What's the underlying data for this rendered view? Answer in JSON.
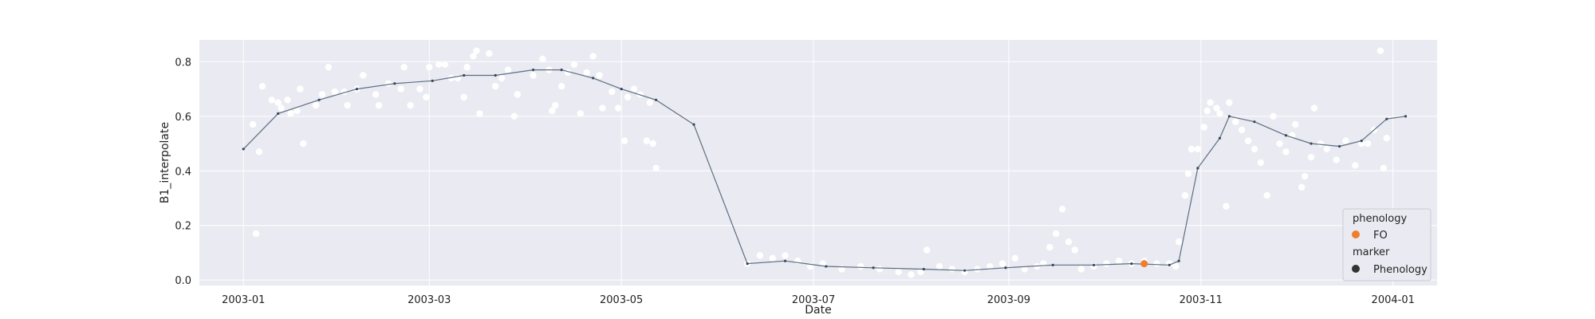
{
  "chart_data": {
    "type": "scatter",
    "xlabel": "Date",
    "ylabel": "B1_interpolate",
    "xlim": [
      "2002-12-18",
      "2004-01-15"
    ],
    "ylim": [
      -0.02,
      0.88
    ],
    "x_ticks": [
      "2003-01-01",
      "2003-03-01",
      "2003-05-01",
      "2003-07-01",
      "2003-09-01",
      "2003-11-01",
      "2004-01-01"
    ],
    "x_tick_labels": [
      "2003-01",
      "2003-03",
      "2003-05",
      "2003-07",
      "2003-09",
      "2003-11",
      "2004-01"
    ],
    "y_ticks": [
      0.0,
      0.2,
      0.4,
      0.6,
      0.8
    ],
    "y_tick_labels": [
      "0.0",
      "0.2",
      "0.4",
      "0.6",
      "0.8"
    ],
    "grid": true,
    "legend_position": "lower-right",
    "colors": {
      "background": "#eaeaf2",
      "grid": "#ffffff",
      "raw_points": "#ffffff",
      "interpolated_line": "#5b6e80",
      "interpolated_points": "#34495e",
      "phenology": "#ee7f2d",
      "marker_legend": "#333333"
    },
    "series": [
      {
        "kind": "raw",
        "points": [
          [
            "2003-01-04",
            0.57
          ],
          [
            "2003-01-05",
            0.17
          ],
          [
            "2003-01-06",
            0.47
          ],
          [
            "2003-01-07",
            0.71
          ],
          [
            "2003-01-10",
            0.66
          ],
          [
            "2003-01-12",
            0.65
          ],
          [
            "2003-01-13",
            0.63
          ],
          [
            "2003-01-15",
            0.66
          ],
          [
            "2003-01-16",
            0.61
          ],
          [
            "2003-01-18",
            0.62
          ],
          [
            "2003-01-19",
            0.7
          ],
          [
            "2003-01-20",
            0.5
          ],
          [
            "2003-01-24",
            0.64
          ],
          [
            "2003-01-26",
            0.68
          ],
          [
            "2003-01-28",
            0.78
          ],
          [
            "2003-01-30",
            0.69
          ],
          [
            "2003-02-02",
            0.69
          ],
          [
            "2003-02-03",
            0.64
          ],
          [
            "2003-02-06",
            0.7
          ],
          [
            "2003-02-08",
            0.75
          ],
          [
            "2003-02-12",
            0.68
          ],
          [
            "2003-02-13",
            0.64
          ],
          [
            "2003-02-16",
            0.72
          ],
          [
            "2003-02-20",
            0.7
          ],
          [
            "2003-02-21",
            0.78
          ],
          [
            "2003-02-23",
            0.64
          ],
          [
            "2003-02-26",
            0.7
          ],
          [
            "2003-02-28",
            0.67
          ],
          [
            "2003-03-01",
            0.78
          ],
          [
            "2003-03-04",
            0.79
          ],
          [
            "2003-03-06",
            0.79
          ],
          [
            "2003-03-08",
            0.74
          ],
          [
            "2003-03-10",
            0.74
          ],
          [
            "2003-03-12",
            0.67
          ],
          [
            "2003-03-13",
            0.78
          ],
          [
            "2003-03-15",
            0.82
          ],
          [
            "2003-03-16",
            0.84
          ],
          [
            "2003-03-17",
            0.61
          ],
          [
            "2003-03-20",
            0.83
          ],
          [
            "2003-03-22",
            0.71
          ],
          [
            "2003-03-24",
            0.74
          ],
          [
            "2003-03-26",
            0.77
          ],
          [
            "2003-03-28",
            0.6
          ],
          [
            "2003-03-29",
            0.68
          ],
          [
            "2003-04-03",
            0.75
          ],
          [
            "2003-04-06",
            0.81
          ],
          [
            "2003-04-08",
            0.77
          ],
          [
            "2003-04-09",
            0.62
          ],
          [
            "2003-04-10",
            0.64
          ],
          [
            "2003-04-12",
            0.71
          ],
          [
            "2003-04-14",
            0.76
          ],
          [
            "2003-04-16",
            0.79
          ],
          [
            "2003-04-18",
            0.61
          ],
          [
            "2003-04-20",
            0.76
          ],
          [
            "2003-04-22",
            0.82
          ],
          [
            "2003-04-24",
            0.75
          ],
          [
            "2003-04-25",
            0.63
          ],
          [
            "2003-04-28",
            0.69
          ],
          [
            "2003-04-30",
            0.63
          ],
          [
            "2003-05-02",
            0.51
          ],
          [
            "2003-05-03",
            0.67
          ],
          [
            "2003-05-05",
            0.7
          ],
          [
            "2003-05-07",
            0.68
          ],
          [
            "2003-05-09",
            0.51
          ],
          [
            "2003-05-10",
            0.65
          ],
          [
            "2003-05-11",
            0.5
          ],
          [
            "2003-05-12",
            0.41
          ],
          [
            "2003-06-10",
            0.06
          ],
          [
            "2003-06-14",
            0.09
          ],
          [
            "2003-06-18",
            0.08
          ],
          [
            "2003-06-22",
            0.09
          ],
          [
            "2003-06-26",
            0.07
          ],
          [
            "2003-06-30",
            0.05
          ],
          [
            "2003-07-04",
            0.06
          ],
          [
            "2003-07-10",
            0.04
          ],
          [
            "2003-07-16",
            0.05
          ],
          [
            "2003-07-22",
            0.04
          ],
          [
            "2003-07-28",
            0.03
          ],
          [
            "2003-08-01",
            0.02
          ],
          [
            "2003-08-04",
            0.03
          ],
          [
            "2003-08-06",
            0.11
          ],
          [
            "2003-08-10",
            0.05
          ],
          [
            "2003-08-14",
            0.04
          ],
          [
            "2003-08-18",
            0.03
          ],
          [
            "2003-08-22",
            0.04
          ],
          [
            "2003-08-26",
            0.05
          ],
          [
            "2003-08-30",
            0.06
          ],
          [
            "2003-09-03",
            0.08
          ],
          [
            "2003-09-06",
            0.04
          ],
          [
            "2003-09-10",
            0.05
          ],
          [
            "2003-09-12",
            0.06
          ],
          [
            "2003-09-14",
            0.12
          ],
          [
            "2003-09-16",
            0.17
          ],
          [
            "2003-09-18",
            0.26
          ],
          [
            "2003-09-20",
            0.14
          ],
          [
            "2003-09-22",
            0.11
          ],
          [
            "2003-09-24",
            0.04
          ],
          [
            "2003-09-28",
            0.05
          ],
          [
            "2003-10-02",
            0.06
          ],
          [
            "2003-10-06",
            0.07
          ],
          [
            "2003-10-10",
            0.06
          ],
          [
            "2003-10-14",
            0.07
          ],
          [
            "2003-10-18",
            0.06
          ],
          [
            "2003-10-22",
            0.06
          ],
          [
            "2003-10-24",
            0.05
          ],
          [
            "2003-10-25",
            0.14
          ],
          [
            "2003-10-27",
            0.31
          ],
          [
            "2003-10-28",
            0.39
          ],
          [
            "2003-10-29",
            0.48
          ],
          [
            "2003-10-31",
            0.48
          ],
          [
            "2003-11-02",
            0.56
          ],
          [
            "2003-11-03",
            0.62
          ],
          [
            "2003-11-04",
            0.65
          ],
          [
            "2003-11-06",
            0.63
          ],
          [
            "2003-11-07",
            0.61
          ],
          [
            "2003-11-09",
            0.27
          ],
          [
            "2003-11-10",
            0.65
          ],
          [
            "2003-11-12",
            0.58
          ],
          [
            "2003-11-14",
            0.55
          ],
          [
            "2003-11-16",
            0.51
          ],
          [
            "2003-11-18",
            0.48
          ],
          [
            "2003-11-20",
            0.43
          ],
          [
            "2003-11-22",
            0.31
          ],
          [
            "2003-11-24",
            0.6
          ],
          [
            "2003-11-26",
            0.5
          ],
          [
            "2003-11-28",
            0.47
          ],
          [
            "2003-11-30",
            0.53
          ],
          [
            "2003-12-01",
            0.57
          ],
          [
            "2003-12-03",
            0.34
          ],
          [
            "2003-12-04",
            0.38
          ],
          [
            "2003-12-06",
            0.45
          ],
          [
            "2003-12-07",
            0.63
          ],
          [
            "2003-12-09",
            0.5
          ],
          [
            "2003-12-11",
            0.48
          ],
          [
            "2003-12-14",
            0.44
          ],
          [
            "2003-12-17",
            0.51
          ],
          [
            "2003-12-20",
            0.42
          ],
          [
            "2003-12-22",
            0.5
          ],
          [
            "2003-12-24",
            0.5
          ],
          [
            "2003-12-26",
            0.55
          ],
          [
            "2003-12-28",
            0.84
          ],
          [
            "2003-12-29",
            0.41
          ],
          [
            "2003-12-30",
            0.52
          ]
        ]
      },
      {
        "kind": "interpolated",
        "points": [
          [
            "2003-01-01",
            0.48
          ],
          [
            "2003-01-12",
            0.61
          ],
          [
            "2003-01-25",
            0.66
          ],
          [
            "2003-02-06",
            0.7
          ],
          [
            "2003-02-18",
            0.72
          ],
          [
            "2003-03-02",
            0.73
          ],
          [
            "2003-03-12",
            0.75
          ],
          [
            "2003-03-22",
            0.75
          ],
          [
            "2003-04-03",
            0.77
          ],
          [
            "2003-04-12",
            0.77
          ],
          [
            "2003-04-22",
            0.74
          ],
          [
            "2003-05-01",
            0.7
          ],
          [
            "2003-05-12",
            0.66
          ],
          [
            "2003-05-24",
            0.57
          ],
          [
            "2003-06-10",
            0.06
          ],
          [
            "2003-06-22",
            0.07
          ],
          [
            "2003-07-05",
            0.05
          ],
          [
            "2003-07-20",
            0.045
          ],
          [
            "2003-08-05",
            0.04
          ],
          [
            "2003-08-18",
            0.035
          ],
          [
            "2003-08-31",
            0.045
          ],
          [
            "2003-09-15",
            0.055
          ],
          [
            "2003-09-28",
            0.055
          ],
          [
            "2003-10-10",
            0.06
          ],
          [
            "2003-10-22",
            0.055
          ],
          [
            "2003-10-25",
            0.07
          ],
          [
            "2003-10-31",
            0.41
          ],
          [
            "2003-11-07",
            0.52
          ],
          [
            "2003-11-10",
            0.6
          ],
          [
            "2003-11-18",
            0.58
          ],
          [
            "2003-11-28",
            0.53
          ],
          [
            "2003-12-06",
            0.5
          ],
          [
            "2003-12-15",
            0.49
          ],
          [
            "2003-12-22",
            0.51
          ],
          [
            "2003-12-30",
            0.59
          ],
          [
            "2004-01-05",
            0.6
          ]
        ]
      },
      {
        "kind": "phenology",
        "name": "FO",
        "points": [
          [
            "2003-10-14",
            0.06
          ]
        ]
      }
    ],
    "legend": {
      "title1": "phenology",
      "item1": "FO",
      "title2": "marker",
      "item2": "Phenology"
    }
  }
}
